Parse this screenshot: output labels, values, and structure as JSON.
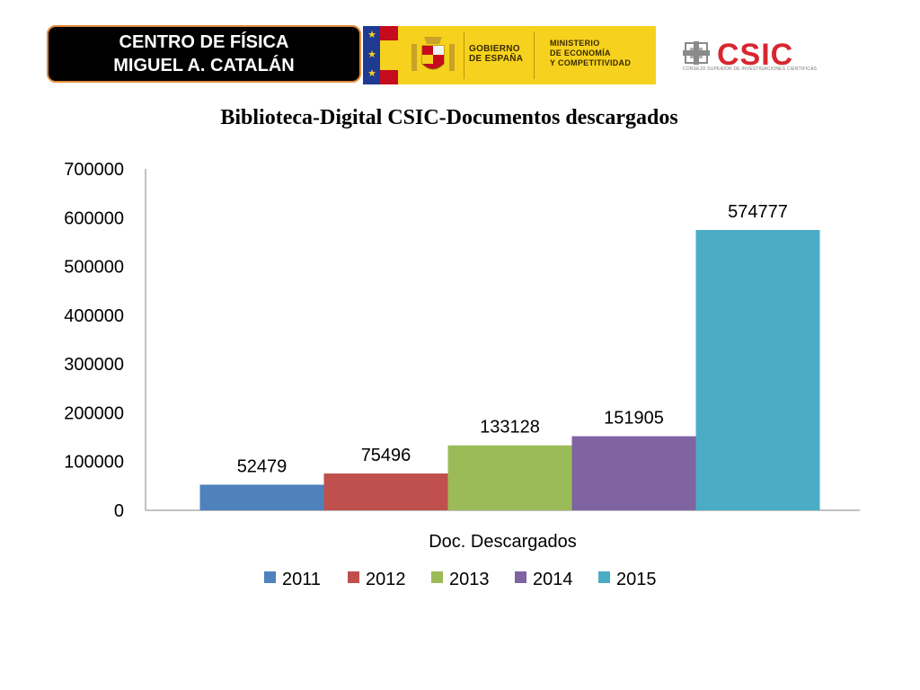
{
  "header": {
    "line1": "CENTRO DE FÍSICA",
    "line2": "MIGUEL A. CATALÁN"
  },
  "logos": {
    "gov_left": "GOBIERNO\nDE ESPAÑA",
    "gov_right": "MINISTERIO\nDE ECONOMÍA\nY COMPETITIVIDAD",
    "csic_word": "CSIC",
    "csic_sub": "CONSEJO SUPERIOR DE INVESTIGACIONES CIENTÍFICAS",
    "gov_color": "#f6d21f",
    "csic_color": "#d8262f"
  },
  "chart_data": {
    "type": "bar",
    "title": "Biblioteca-Digital CSIC-Documentos descargados",
    "categories": [
      "Doc. Descargados"
    ],
    "xlabel": "",
    "ylabel": "",
    "ylim": [
      0,
      700000
    ],
    "yticks": [
      0,
      100000,
      200000,
      300000,
      400000,
      500000,
      600000,
      700000
    ],
    "grid": false,
    "legend_position": "bottom",
    "series": [
      {
        "name": "2011",
        "values": [
          52479
        ],
        "color": "#4f81bd"
      },
      {
        "name": "2012",
        "values": [
          75496
        ],
        "color": "#c0504d"
      },
      {
        "name": "2013",
        "values": [
          133128
        ],
        "color": "#9bbb59"
      },
      {
        "name": "2014",
        "values": [
          151905
        ],
        "color": "#8064a2"
      },
      {
        "name": "2015",
        "values": [
          574777
        ],
        "color": "#4bacc6"
      }
    ]
  }
}
